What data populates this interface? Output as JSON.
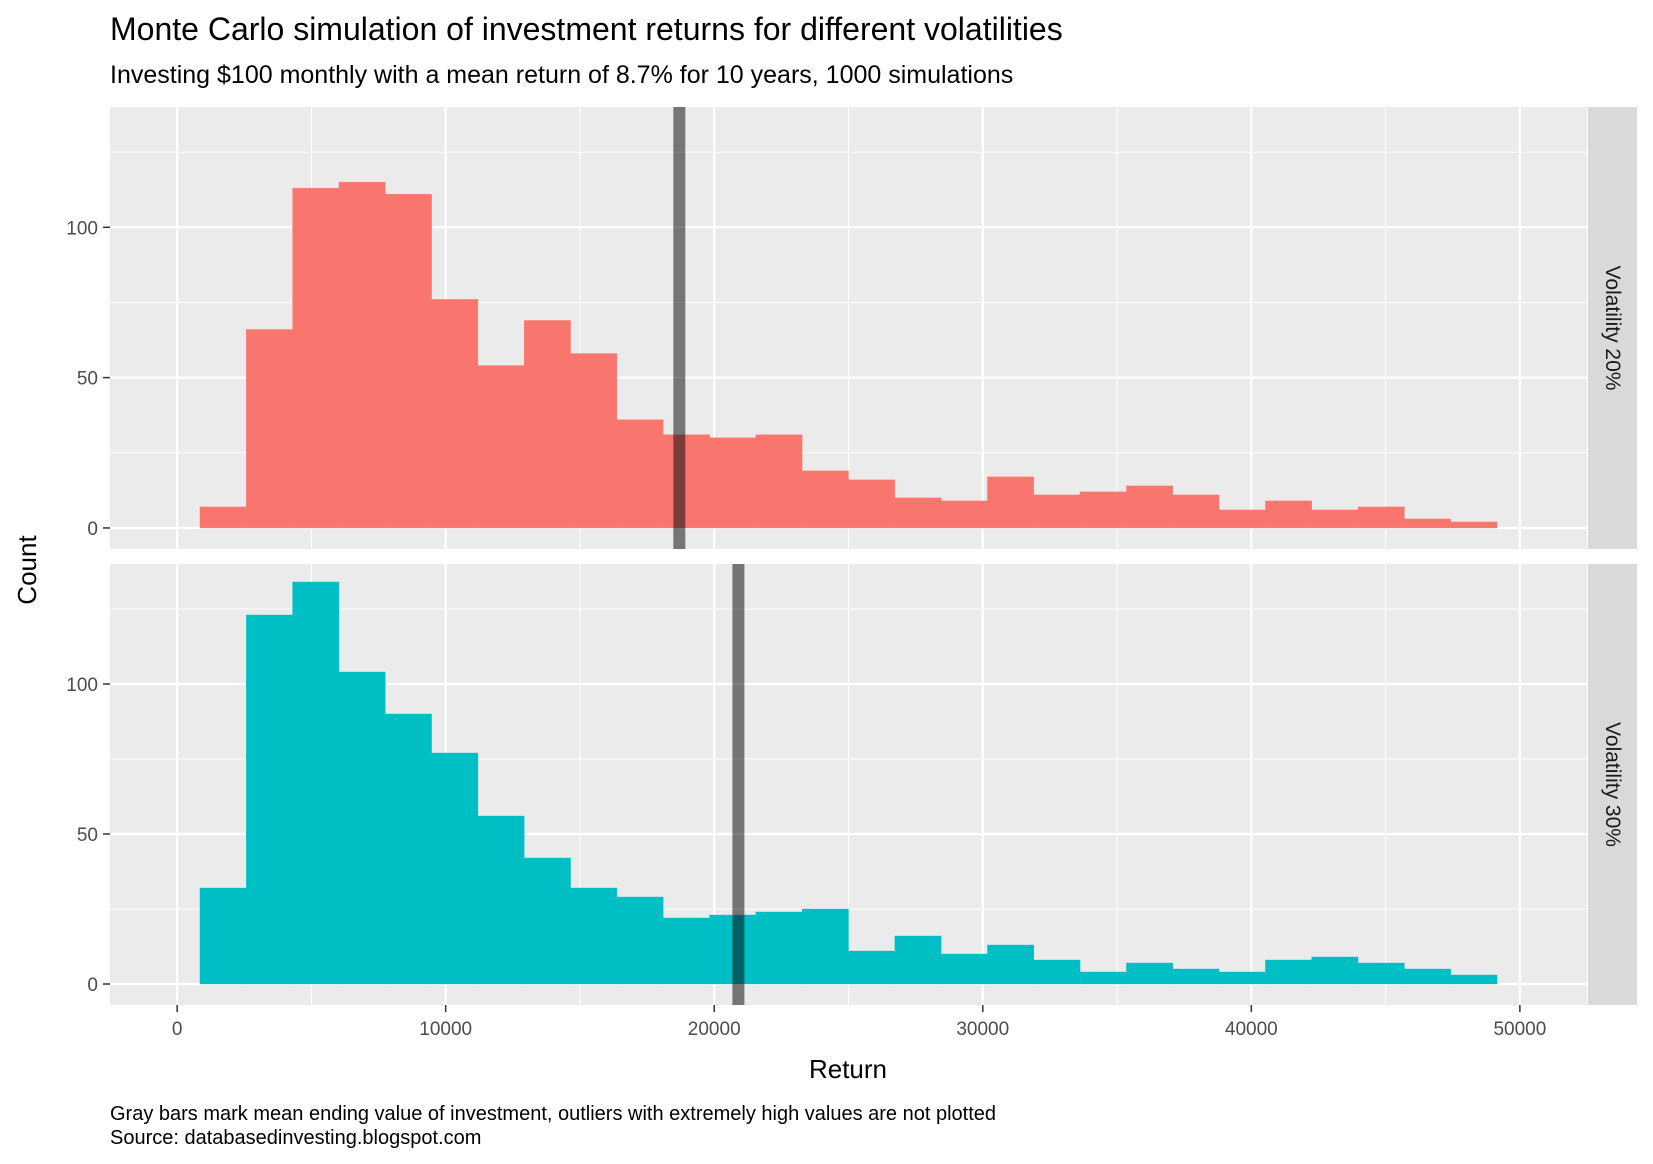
{
  "chart_data": {
    "type": "bar",
    "title": "Monte Carlo simulation of investment returns for different volatilities",
    "subtitle": "Investing $100 monthly with a mean return of 8.7% for 10 years, 1000 simulations",
    "caption_lines": [
      "Gray bars mark mean ending value of investment, outliers with extremely high values are not plotted",
      "Source: databasedinvesting.blogspot.com"
    ],
    "xlabel": "Return",
    "ylabel": "Count",
    "xlim": [
      -2500,
      52500
    ],
    "x_ticks": [
      0,
      10000,
      20000,
      30000,
      40000,
      50000
    ],
    "x_tick_labels": [
      "0",
      "10000",
      "20000",
      "30000",
      "40000",
      "50000"
    ],
    "y_ticks": [
      0,
      50,
      100
    ],
    "y_tick_labels": [
      "0",
      "50",
      "100"
    ],
    "ylim": [
      -7,
      140
    ],
    "bin_start": 850,
    "bin_width": 1725,
    "grid": true,
    "colors": {
      "panel_background": "#EBEBEB",
      "grid": "#FFFFFF",
      "strip_background": "#D9D9D9",
      "mean_line": "#000000"
    },
    "panels": [
      {
        "strip_label": "Volatility 20%",
        "color": "#F8766D",
        "mean": 18700,
        "counts": [
          7,
          66,
          113,
          115,
          111,
          76,
          54,
          69,
          58,
          36,
          31,
          30,
          31,
          19,
          16,
          10,
          9,
          17,
          11,
          12,
          14,
          11,
          6,
          9,
          6,
          7,
          3,
          2
        ]
      },
      {
        "strip_label": "Volatility 30%",
        "color": "#00BFC4",
        "mean": 20900,
        "counts": [
          32,
          123,
          134,
          104,
          90,
          77,
          56,
          42,
          32,
          29,
          22,
          23,
          24,
          25,
          11,
          16,
          10,
          13,
          8,
          4,
          7,
          5,
          4,
          8,
          9,
          7,
          5,
          3
        ]
      }
    ]
  }
}
